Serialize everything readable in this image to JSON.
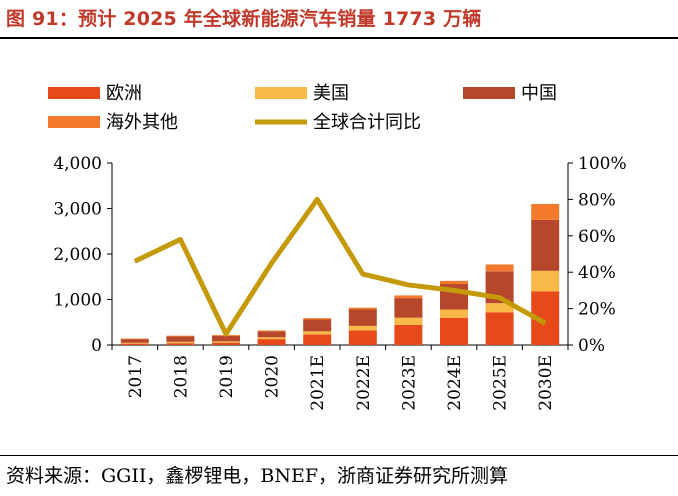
{
  "figure": {
    "title": "图 91：预计 2025 年全球新能源汽车销量 1773 万辆",
    "source": "资料来源：GGII，鑫椤锂电，BNEF，浙商证券研究所测算"
  },
  "colors": {
    "title": "#c0392b",
    "europe": "#e64a19",
    "usa": "#f9b949",
    "china": "#b6472a",
    "overseas_other": "#f47a2b",
    "global_yoy": "#c49a0a"
  },
  "chart_data": {
    "type": "bar",
    "stacked": true,
    "categories": [
      "2017",
      "2018",
      "2019",
      "2020",
      "2021E",
      "2022E",
      "2023E",
      "2024E",
      "2025E",
      "2030E"
    ],
    "series": [
      {
        "name": "欧洲",
        "values": [
          30,
          40,
          50,
          130,
          230,
          320,
          440,
          600,
          720,
          1180
        ]
      },
      {
        "name": "美国",
        "values": [
          20,
          30,
          30,
          40,
          70,
          100,
          160,
          180,
          200,
          450
        ]
      },
      {
        "name": "中国",
        "values": [
          80,
          120,
          120,
          130,
          260,
          360,
          430,
          560,
          700,
          1120
        ]
      },
      {
        "name": "海外其他",
        "values": [
          10,
          15,
          20,
          20,
          30,
          40,
          60,
          70,
          150,
          350
        ]
      }
    ],
    "line_series": {
      "name": "全球合计同比",
      "axis": "right",
      "values": [
        0.46,
        0.58,
        0.06,
        0.45,
        0.8,
        0.39,
        0.33,
        0.3,
        0.26,
        0.12
      ]
    },
    "y_left": {
      "ticks": [
        "0",
        "1,000",
        "2,000",
        "3,000",
        "4,000"
      ],
      "range": [
        0,
        4000
      ]
    },
    "y_right": {
      "ticks": [
        "0%",
        "20%",
        "40%",
        "60%",
        "80%",
        "100%"
      ],
      "range": [
        0,
        1
      ]
    },
    "legend_position": "top",
    "grid": false
  }
}
